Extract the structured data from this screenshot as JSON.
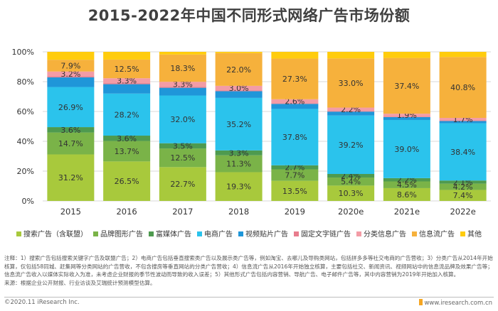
{
  "title": "2015-2022年中国不同形式网络广告市场份额",
  "chart_data": {
    "type": "bar",
    "stacked": true,
    "categories": [
      "2015",
      "2016",
      "2017",
      "2018",
      "2019",
      "2020e",
      "2021e",
      "2022e"
    ],
    "ylim": [
      0,
      100
    ],
    "yticks": [
      "0%",
      "20%",
      "40%",
      "60%",
      "80%",
      "100%"
    ],
    "legend_position": "bottom",
    "series": [
      {
        "name": "搜索广告（含联盟）",
        "color": "#a8c93c",
        "values": [
          31.2,
          26.5,
          22.7,
          19.3,
          13.5,
          10.3,
          8.6,
          7.4
        ],
        "labels": [
          "31.2%",
          "26.5%",
          "22.7%",
          "19.3%",
          "13.5%",
          "10.3%",
          "8.6%",
          "7.4%"
        ]
      },
      {
        "name": "品牌图形广告",
        "color": "#7ab348",
        "values": [
          14.7,
          13.7,
          12.5,
          11.3,
          7.7,
          5.4,
          4.5,
          4.2
        ],
        "labels": [
          "14.7%",
          "13.7%",
          "12.5%",
          "11.3%",
          "7.7%",
          "5.4%",
          "4.5%",
          "4.2%"
        ]
      },
      {
        "name": "富媒体广告",
        "color": "#4e9a4f",
        "values": [
          3.6,
          3.6,
          3.5,
          3.3,
          2.7,
          2.4,
          2.2,
          2.1
        ],
        "labels": [
          "3.6%",
          "3.6%",
          "3.5%",
          "3.3%",
          "2.7%",
          "2.4%",
          "2.2%",
          "2.1%"
        ]
      },
      {
        "name": "电商广告",
        "color": "#2bc3ec",
        "values": [
          26.9,
          28.2,
          32.0,
          35.2,
          37.8,
          39.2,
          39.0,
          38.4
        ],
        "labels": [
          "26.9%",
          "28.2%",
          "32.0%",
          "35.2%",
          "37.8%",
          "39.2%",
          "39.0%",
          "38.4%"
        ]
      },
      {
        "name": "视频贴片广告",
        "color": "#1f96d9",
        "values": [
          6.5,
          6.3,
          5.2,
          4.5,
          3.4,
          2.6,
          1.9,
          1.5
        ],
        "labels": [
          "",
          "",
          "",
          "",
          "",
          "",
          "",
          ""
        ]
      },
      {
        "name": "固定文字链广告",
        "color": "#e87d8d",
        "values": [
          0.7,
          0.7,
          0.7,
          0.6,
          0.5,
          0.5,
          0.4,
          0.4
        ],
        "labels": [
          "",
          "",
          "",
          "",
          "",
          "",
          "",
          ""
        ]
      },
      {
        "name": "分类信息广告",
        "color": "#f39ca6",
        "values": [
          3.2,
          3.3,
          3.3,
          3.0,
          2.6,
          2.2,
          1.9,
          1.7
        ],
        "labels": [
          "3.2%",
          "3.3%",
          "3.3%",
          "3.0%",
          "2.6%",
          "2.2%",
          "1.9%",
          "1.7%"
        ]
      },
      {
        "name": "信息流广告",
        "color": "#f6b13c",
        "values": [
          7.9,
          12.5,
          18.3,
          22.0,
          27.3,
          33.0,
          37.4,
          40.8
        ],
        "labels": [
          "7.9%",
          "12.5%",
          "18.3%",
          "22.0%",
          "27.3%",
          "33.0%",
          "37.4%",
          "40.8%"
        ]
      },
      {
        "name": "其他",
        "color": "#ffcc0d",
        "values": [
          5.3,
          5.2,
          1.8,
          0.8,
          4.5,
          4.4,
          4.1,
          3.5
        ],
        "labels": [
          "",
          "",
          "",
          "",
          "",
          "",
          "",
          ""
        ]
      }
    ]
  },
  "notes": "注释：1）搜索广告包括搜索关键字广告及联盟广告；2）电商广告包括垂直搜索类广告以及展示类广告等，例如淘宝、去哪儿及导购类网站，包括拼多多等社交电商的广告营收；3）分类广告从2014年开始核算，仅包括58同城、赶集网等分类网站的广告营收，不包含搜房等垂直网站的分类广告营收；4）信息流广告从2016年开始独立核算，主要包括社交、新闻资讯、视频网站中的信息流品牌及效果广告等；信息流广告收入以媒体实际收入为准，未考虑企业财报的季节性波动而导致的收入误差；5）其他形式广告包括内容营销、导航广告、电子邮件广告等，其中内容营销为2019年开始加入核算。",
  "source": "来源：根据企业公开财报、行业访谈及艾瑞统计预测模型估算。",
  "footer": {
    "left": "©2020.11 iResearch Inc.",
    "right": "www.iresearch.com.cn"
  }
}
